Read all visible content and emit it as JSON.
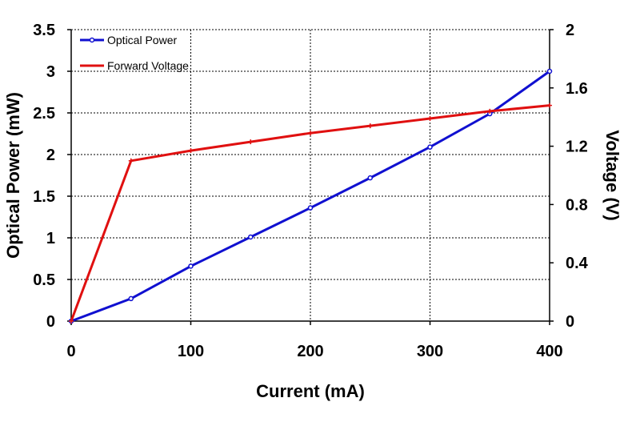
{
  "chart_data": {
    "type": "line",
    "xlabel": "Current (mA)",
    "ylabel_left": "Optical Power (mW)",
    "ylabel_right": "Voltage (V)",
    "xlim": [
      0,
      400
    ],
    "ylim_left": [
      0,
      3.5
    ],
    "ylim_right": [
      0,
      2
    ],
    "x_ticks": [
      "0",
      "100",
      "200",
      "300",
      "400"
    ],
    "y_left_ticks": [
      "0",
      "0.5",
      "1",
      "1.5",
      "2",
      "2.5",
      "3",
      "3.5"
    ],
    "y_right_ticks": [
      "0",
      "0.4",
      "0.8",
      "1.2",
      "1.6",
      "2"
    ],
    "grid": true,
    "legend_position": "top-left",
    "series": [
      {
        "name": "Optical Power",
        "axis": "left",
        "color": "#1010d0",
        "marker": "circle",
        "x": [
          0,
          50,
          100,
          150,
          200,
          250,
          300,
          350,
          400
        ],
        "values": [
          0,
          0.27,
          0.66,
          1.01,
          1.36,
          1.72,
          2.09,
          2.49,
          3.0
        ]
      },
      {
        "name": "Forward Voltage",
        "axis": "right",
        "color": "#e01010",
        "marker": "plus",
        "x": [
          0,
          50,
          100,
          150,
          200,
          250,
          300,
          350,
          400
        ],
        "values": [
          0,
          1.1,
          1.17,
          1.23,
          1.29,
          1.34,
          1.39,
          1.44,
          1.48
        ]
      }
    ]
  }
}
